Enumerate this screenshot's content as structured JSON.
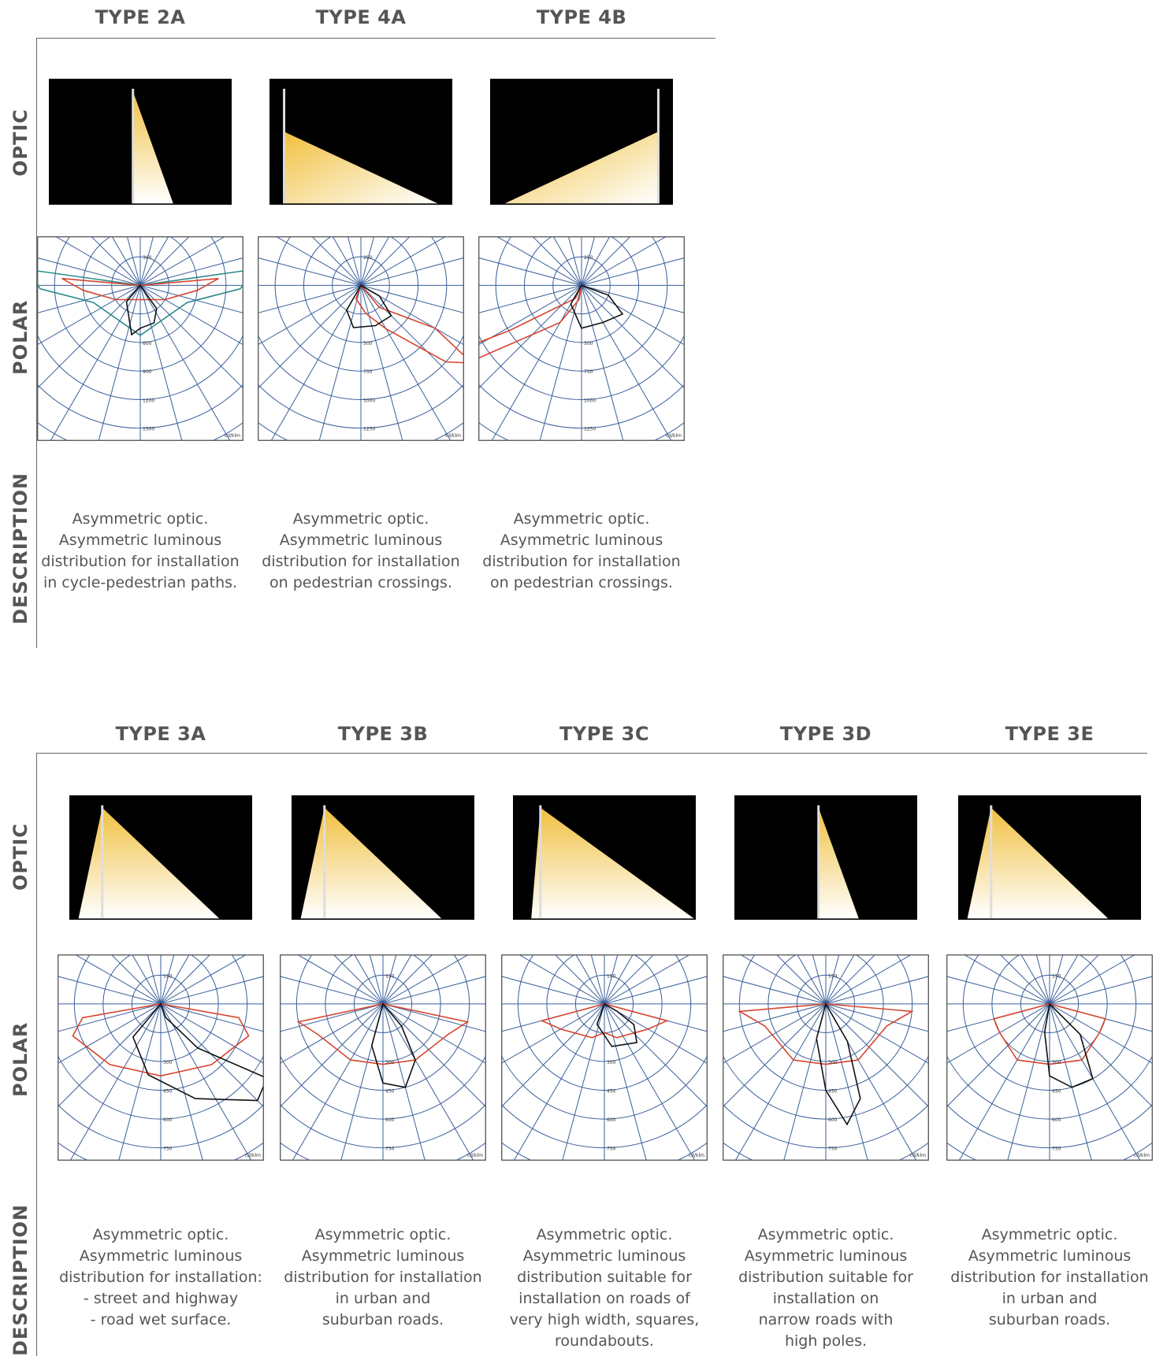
{
  "rows": [
    {
      "labels": {
        "optic": "OPTIC",
        "polar": "POLAR",
        "description": "DESCRIPTION"
      },
      "items": [
        {
          "id": "type-2a",
          "title": "TYPE 2A",
          "optic_kind": "narrow",
          "polar_ticks": [
            "300",
            "600",
            "900",
            "1200",
            "1500"
          ],
          "unit": "cd/klm",
          "description": [
            "Asymmetric optic.",
            "Asymmetric luminous",
            "distribution for installation",
            "in cycle-pedestrian paths."
          ]
        },
        {
          "id": "type-4a",
          "title": "TYPE 4A",
          "optic_kind": "wedge-left",
          "polar_ticks": [
            "250",
            "500",
            "750",
            "1000",
            "1250"
          ],
          "unit": "cd/klm",
          "description": [
            "Asymmetric optic.",
            "Asymmetric luminous",
            "distribution for installation",
            "on pedestrian crossings."
          ]
        },
        {
          "id": "type-4b",
          "title": "TYPE 4B",
          "optic_kind": "wedge-right",
          "polar_ticks": [
            "250",
            "500",
            "750",
            "1000",
            "1250"
          ],
          "unit": "cd/klm",
          "description": [
            "Asymmetric optic.",
            "Asymmetric luminous",
            "distribution for installation",
            "on pedestrian crossings."
          ]
        }
      ]
    },
    {
      "labels": {
        "optic": "OPTIC",
        "polar": "POLAR",
        "description": "DESCRIPTION"
      },
      "items": [
        {
          "id": "type-3a",
          "title": "TYPE 3A",
          "optic_kind": "wide",
          "polar_ticks": [
            "150",
            "300",
            "450",
            "600",
            "750"
          ],
          "unit": "cd/klm",
          "description": [
            "Asymmetric optic.",
            "Asymmetric luminous",
            "distribution for installation:",
            "- street and highway",
            "- road wet surface."
          ]
        },
        {
          "id": "type-3b",
          "title": "TYPE 3B",
          "optic_kind": "wide",
          "polar_ticks": [
            "150",
            "300",
            "450",
            "600",
            "750"
          ],
          "unit": "cd/klm",
          "description": [
            "Asymmetric optic.",
            "Asymmetric luminous",
            "distribution for installation",
            "in urban and",
            "suburban roads."
          ]
        },
        {
          "id": "type-3c",
          "title": "TYPE 3C",
          "optic_kind": "very-wide",
          "polar_ticks": [
            "150",
            "300",
            "450",
            "600",
            "750"
          ],
          "unit": "cd/klm",
          "description": [
            "Asymmetric optic.",
            "Asymmetric luminous",
            "distribution suitable for",
            "installation on roads of",
            "very high width, squares,",
            "roundabouts."
          ]
        },
        {
          "id": "type-3d",
          "title": "TYPE 3D",
          "optic_kind": "narrow",
          "polar_ticks": [
            "150",
            "300",
            "450",
            "600",
            "750"
          ],
          "unit": "cd/klm",
          "description": [
            "Asymmetric optic.",
            "Asymmetric luminous",
            "distribution suitable for",
            "installation on",
            "narrow roads with",
            "high poles."
          ]
        },
        {
          "id": "type-3e",
          "title": "TYPE 3E",
          "optic_kind": "wide",
          "polar_ticks": [
            "150",
            "300",
            "450",
            "600",
            "750"
          ],
          "unit": "cd/klm",
          "description": [
            "Asymmetric optic.",
            "Asymmetric luminous",
            "distribution for installation",
            "in urban and",
            "suburban roads."
          ]
        }
      ]
    }
  ],
  "colors": {
    "grid": "#3a5f9a",
    "c0": "#d6452e",
    "c90": "#111111",
    "teal": "#2a8a8a",
    "light": "#f0c040",
    "frame": "#000000"
  }
}
